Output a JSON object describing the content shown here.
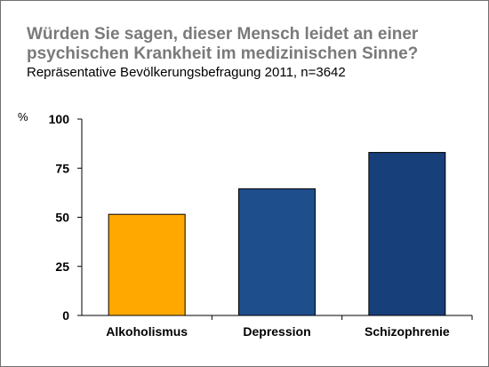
{
  "chart_data": {
    "type": "bar",
    "title": "Würden Sie sagen, dieser Mensch leidet an einer psychischen Krankheit im medizinischen Sinne?",
    "subtitle": "Repräsentative Bevölkerungsbefragung 2011, n=3642",
    "ylabel": "%",
    "xlabel": "",
    "categories": [
      "Alkoholismus",
      "Depression",
      "Schizophrenie"
    ],
    "values": [
      51.5,
      64.5,
      83
    ],
    "colors": [
      "#FFA800",
      "#1F4E8C",
      "#173F7A"
    ],
    "ylim": [
      0,
      100
    ],
    "yticks": [
      "0",
      "25",
      "50",
      "75",
      "100"
    ],
    "grid": false,
    "legend": "none"
  }
}
